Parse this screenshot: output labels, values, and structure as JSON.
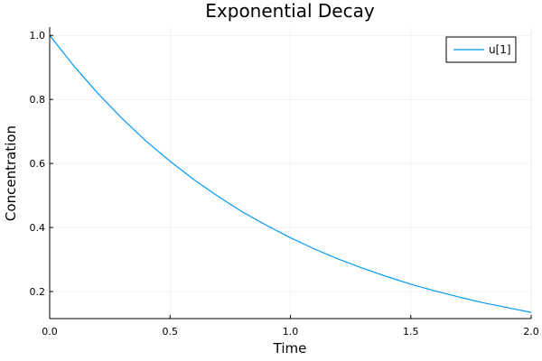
{
  "chart_data": {
    "type": "line",
    "title": "Exponential Decay",
    "xlabel": "Time",
    "ylabel": "Concentration",
    "xlim": [
      0,
      2
    ],
    "ylim": [
      0.1156,
      1.026
    ],
    "xticks": [
      0,
      0.5,
      1,
      1.5,
      2
    ],
    "xtick_labels": [
      "0.0",
      "0.5",
      "1.0",
      "1.5",
      "2.0"
    ],
    "yticks": [
      0.2,
      0.4,
      0.6,
      0.8,
      1.0
    ],
    "ytick_labels": [
      "0.2",
      "0.4",
      "0.6",
      "0.8",
      "1.0"
    ],
    "grid": true,
    "legend_position": "top-right",
    "series": [
      {
        "name": "u[1]",
        "color": "#009af9",
        "x": [
          0,
          0.1,
          0.2,
          0.3,
          0.4,
          0.5,
          0.6,
          0.7,
          0.8,
          0.9,
          1.0,
          1.1,
          1.2,
          1.3,
          1.4,
          1.5,
          1.6,
          1.7,
          1.8,
          1.9,
          2.0
        ],
        "y": [
          1.0,
          0.905,
          0.819,
          0.741,
          0.67,
          0.607,
          0.549,
          0.497,
          0.449,
          0.407,
          0.368,
          0.333,
          0.301,
          0.273,
          0.247,
          0.223,
          0.202,
          0.183,
          0.165,
          0.15,
          0.135
        ]
      }
    ]
  }
}
